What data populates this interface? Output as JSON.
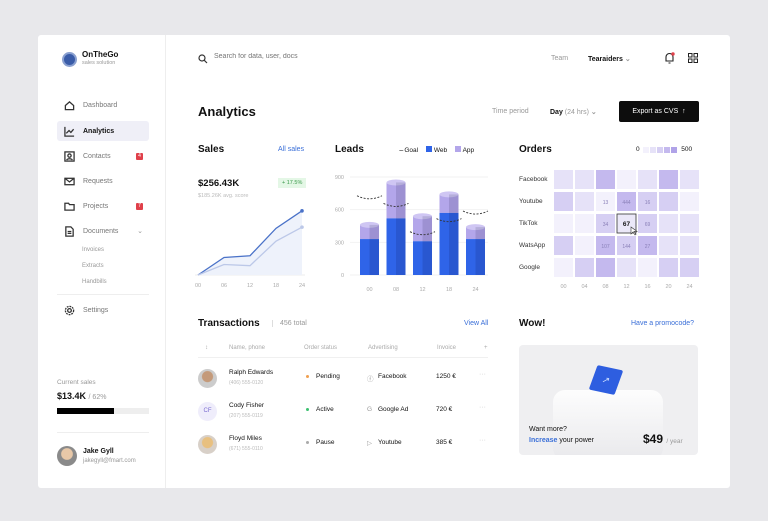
{
  "app": {
    "name": "OnTheGo",
    "tagline": "sales solution"
  },
  "sidebar": {
    "items": [
      {
        "label": "Dashboard",
        "icon": "home-icon"
      },
      {
        "label": "Analytics",
        "icon": "chart-line-icon",
        "active": true
      },
      {
        "label": "Contacts",
        "icon": "contact-icon",
        "badge": "4"
      },
      {
        "label": "Requests",
        "icon": "mail-icon"
      },
      {
        "label": "Projects",
        "icon": "folder-icon",
        "badge": "7"
      },
      {
        "label": "Documents",
        "icon": "document-icon",
        "expanded": true
      }
    ],
    "sub_items": [
      "Invoices",
      "Extracts",
      "Handbills"
    ],
    "settings": "Settings",
    "current_sales": {
      "label": "Current sales",
      "value": "$13.4K",
      "percent_label": "/ 62%",
      "progress": 62
    },
    "user": {
      "name": "Jake Gyll",
      "email": "jakegyll@fmart.com"
    }
  },
  "header": {
    "search_placeholder": "Search for data, user, docs",
    "team_label": "Team",
    "team_value": "Tearaiders"
  },
  "page": {
    "title": "Analytics",
    "time_period_label": "Time period",
    "time_period_value": "Day",
    "time_period_sub": "(24 hrs)",
    "export_label": "Export as CVS"
  },
  "sales": {
    "title": "Sales",
    "link": "All sales",
    "value": "$256.43K",
    "change": "+ 17.5%",
    "sub": "$185.26K avg. score"
  },
  "chart_data": [
    {
      "type": "line",
      "title": "Sales",
      "categories": [
        "00",
        "06",
        "12",
        "18",
        "24"
      ],
      "series": [
        {
          "values": [
            0,
            30,
            33,
            80,
            110
          ]
        },
        {
          "values": [
            0,
            18,
            16,
            58,
            82
          ]
        }
      ],
      "ylim": [
        0,
        120
      ]
    },
    {
      "type": "bar",
      "title": "Leads",
      "categories": [
        "00",
        "08",
        "12",
        "18",
        "24"
      ],
      "ylim": [
        0,
        900
      ],
      "yticks": [
        "0",
        "300",
        "600",
        "900"
      ],
      "series": [
        {
          "name": "Web",
          "color": "#2f64e8",
          "values": [
            330,
            520,
            310,
            570,
            330
          ]
        },
        {
          "name": "App",
          "color": "#b3a6ea",
          "values": [
            130,
            330,
            230,
            170,
            110
          ]
        },
        {
          "name": "Goal",
          "values": [
            700,
            630,
            370,
            490,
            560
          ]
        }
      ]
    },
    {
      "type": "heatmap",
      "title": "Orders",
      "rows": [
        "Facebook",
        "Youtube",
        "TikTok",
        "WatsApp",
        "Google"
      ],
      "columns": [
        "00",
        "04",
        "08",
        "12",
        "16",
        "20",
        "24"
      ],
      "levels": [
        [
          1,
          1,
          3,
          0,
          1,
          3,
          1
        ],
        [
          2,
          1,
          0,
          3,
          2,
          2,
          0
        ],
        [
          0,
          0,
          2,
          1,
          2,
          1,
          1
        ],
        [
          2,
          0,
          3,
          2,
          3,
          1,
          1
        ],
        [
          0,
          2,
          3,
          1,
          0,
          2,
          2
        ]
      ],
      "labels": [
        [
          "",
          "",
          "",
          "",
          "",
          "",
          ""
        ],
        [
          "",
          "",
          "13",
          "444",
          "16",
          "",
          ""
        ],
        [
          "",
          "",
          "34",
          "67",
          "69",
          "",
          ""
        ],
        [
          "",
          "",
          "107",
          "144",
          "27",
          "",
          ""
        ],
        [
          "",
          "",
          "",
          "",
          "",
          "",
          ""
        ]
      ],
      "highlight": "67",
      "legend_min": "0",
      "legend_max": "500"
    }
  ],
  "leads": {
    "title": "Leads",
    "legend": [
      "Goal",
      "Web",
      "App"
    ]
  },
  "orders": {
    "title": "Orders"
  },
  "transactions": {
    "title": "Transactions",
    "total": "456 total",
    "link": "View All",
    "columns": [
      "Name, phone",
      "Order status",
      "Advertising",
      "Invoice"
    ],
    "rows": [
      {
        "name": "Ralph Edwards",
        "phone": "(406) 555-0120",
        "status": "Pending",
        "status_color": "#f0a050",
        "ad": "Facebook",
        "invoice": "1250 €"
      },
      {
        "name": "Cody Fisher",
        "initials": "CF",
        "phone": "(207) 555-0119",
        "status": "Active",
        "status_color": "#3cc070",
        "ad": "Google Ad",
        "invoice": "720 €"
      },
      {
        "name": "Floyd Miles",
        "phone": "(671) 555-0110",
        "status": "Pause",
        "status_color": "#aaaaaa",
        "ad": "Youtube",
        "invoice": "385 €"
      }
    ]
  },
  "promo": {
    "title": "Wow!",
    "link": "Have a promocode?",
    "line1": "Want more?",
    "highlight": "Increase",
    "line2": " your power",
    "price": "$49",
    "period": "/ year"
  }
}
